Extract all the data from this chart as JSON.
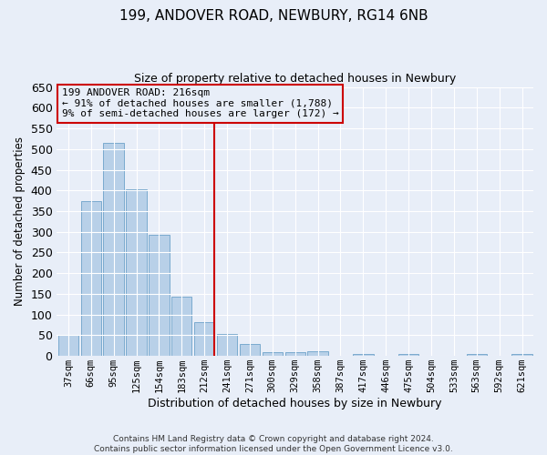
{
  "title": "199, ANDOVER ROAD, NEWBURY, RG14 6NB",
  "subtitle": "Size of property relative to detached houses in Newbury",
  "xlabel": "Distribution of detached houses by size in Newbury",
  "ylabel": "Number of detached properties",
  "footer_line1": "Contains HM Land Registry data © Crown copyright and database right 2024.",
  "footer_line2": "Contains public sector information licensed under the Open Government Licence v3.0.",
  "annotation_line1": "199 ANDOVER ROAD: 216sqm",
  "annotation_line2": "← 91% of detached houses are smaller (1,788)",
  "annotation_line3": "9% of semi-detached houses are larger (172) →",
  "bar_labels": [
    "37sqm",
    "66sqm",
    "95sqm",
    "125sqm",
    "154sqm",
    "183sqm",
    "212sqm",
    "241sqm",
    "271sqm",
    "300sqm",
    "329sqm",
    "358sqm",
    "387sqm",
    "417sqm",
    "446sqm",
    "475sqm",
    "504sqm",
    "533sqm",
    "563sqm",
    "592sqm",
    "621sqm"
  ],
  "bar_values": [
    50,
    375,
    515,
    403,
    292,
    143,
    82,
    54,
    30,
    10,
    10,
    12,
    0,
    5,
    0,
    5,
    0,
    0,
    5,
    0,
    5
  ],
  "bar_color": "#b8d0e8",
  "bar_edge_color": "#7aaace",
  "highlight_index": 6,
  "highlight_line_color": "#cc0000",
  "annotation_box_color": "#cc0000",
  "background_color": "#e8eef8",
  "grid_color": "#ffffff",
  "ylim": [
    0,
    650
  ],
  "yticks": [
    0,
    50,
    100,
    150,
    200,
    250,
    300,
    350,
    400,
    450,
    500,
    550,
    600,
    650
  ],
  "figsize": [
    6.0,
    5.0
  ],
  "dpi": 100
}
